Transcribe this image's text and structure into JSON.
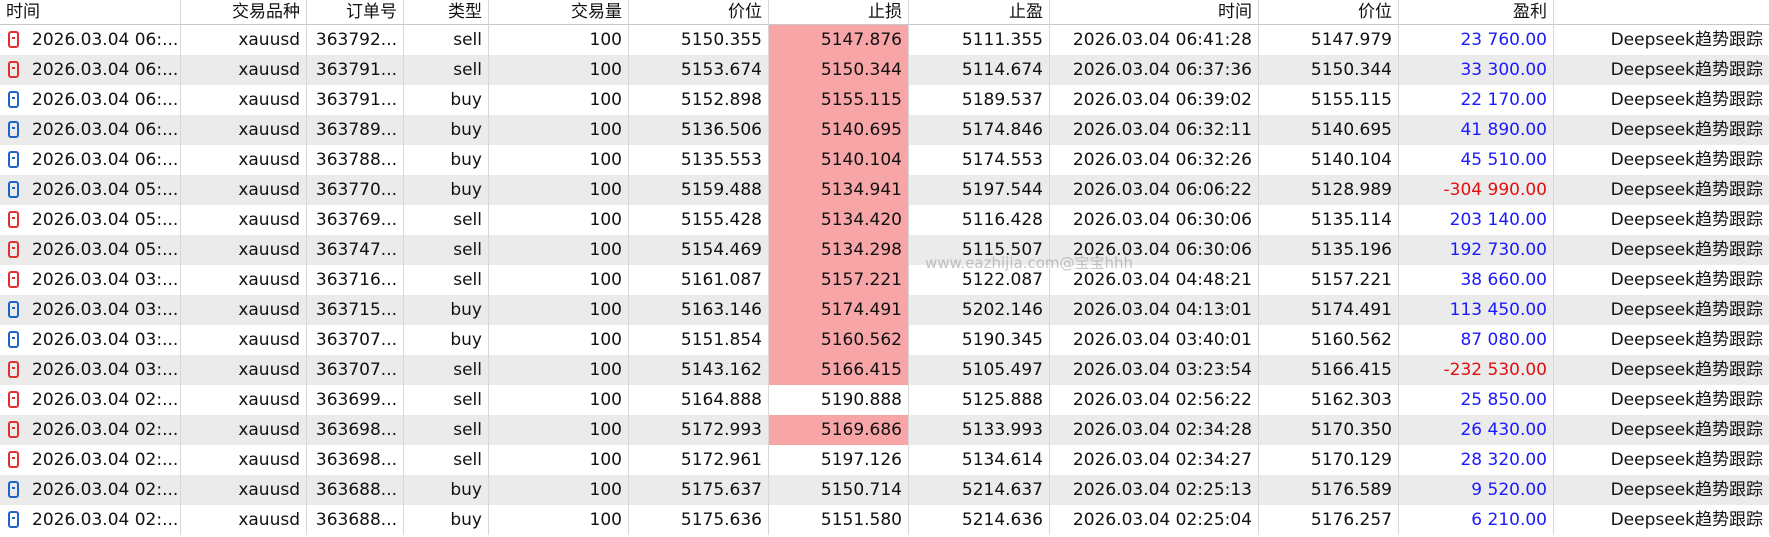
{
  "table": {
    "headers": [
      "时间",
      "交易品种",
      "订单号",
      "类型",
      "交易量",
      "价位",
      "止损",
      "止盈",
      "时间",
      "价位",
      "盈利",
      ""
    ],
    "rows": [
      [
        "2026.03.04 06:...",
        "xauusd",
        "363792...",
        "sell",
        "100",
        "5150.355",
        "5147.876",
        "5111.355",
        "2026.03.04 06:41:28",
        "5147.979",
        "23 760.00",
        "Deepseek趋势跟踪"
      ],
      [
        "2026.03.04 06:...",
        "xauusd",
        "363791...",
        "sell",
        "100",
        "5153.674",
        "5150.344",
        "5114.674",
        "2026.03.04 06:37:36",
        "5150.344",
        "33 300.00",
        "Deepseek趋势跟踪"
      ],
      [
        "2026.03.04 06:...",
        "xauusd",
        "363791...",
        "buy",
        "100",
        "5152.898",
        "5155.115",
        "5189.537",
        "2026.03.04 06:39:02",
        "5155.115",
        "22 170.00",
        "Deepseek趋势跟踪"
      ],
      [
        "2026.03.04 06:...",
        "xauusd",
        "363789...",
        "buy",
        "100",
        "5136.506",
        "5140.695",
        "5174.846",
        "2026.03.04 06:32:11",
        "5140.695",
        "41 890.00",
        "Deepseek趋势跟踪"
      ],
      [
        "2026.03.04 06:...",
        "xauusd",
        "363788...",
        "buy",
        "100",
        "5135.553",
        "5140.104",
        "5174.553",
        "2026.03.04 06:32:26",
        "5140.104",
        "45 510.00",
        "Deepseek趋势跟踪"
      ],
      [
        "2026.03.04 05:...",
        "xauusd",
        "363770...",
        "buy",
        "100",
        "5159.488",
        "5134.941",
        "5197.544",
        "2026.03.04 06:06:22",
        "5128.989",
        "-304 990.00",
        "Deepseek趋势跟踪"
      ],
      [
        "2026.03.04 05:...",
        "xauusd",
        "363769...",
        "sell",
        "100",
        "5155.428",
        "5134.420",
        "5116.428",
        "2026.03.04 06:30:06",
        "5135.114",
        "203 140.00",
        "Deepseek趋势跟踪"
      ],
      [
        "2026.03.04 05:...",
        "xauusd",
        "363747...",
        "sell",
        "100",
        "5154.469",
        "5134.298",
        "5115.507",
        "2026.03.04 06:30:06",
        "5135.196",
        "192 730.00",
        "Deepseek趋势跟踪"
      ],
      [
        "2026.03.04 03:...",
        "xauusd",
        "363716...",
        "sell",
        "100",
        "5161.087",
        "5157.221",
        "5122.087",
        "2026.03.04 04:48:21",
        "5157.221",
        "38 660.00",
        "Deepseek趋势跟踪"
      ],
      [
        "2026.03.04 03:...",
        "xauusd",
        "363715...",
        "buy",
        "100",
        "5163.146",
        "5174.491",
        "5202.146",
        "2026.03.04 04:13:01",
        "5174.491",
        "113 450.00",
        "Deepseek趋势跟踪"
      ],
      [
        "2026.03.04 03:...",
        "xauusd",
        "363707...",
        "buy",
        "100",
        "5151.854",
        "5160.562",
        "5190.345",
        "2026.03.04 03:40:01",
        "5160.562",
        "87 080.00",
        "Deepseek趋势跟踪"
      ],
      [
        "2026.03.04 03:...",
        "xauusd",
        "363707...",
        "sell",
        "100",
        "5143.162",
        "5166.415",
        "5105.497",
        "2026.03.04 03:23:54",
        "5166.415",
        "-232 530.00",
        "Deepseek趋势跟踪"
      ],
      [
        "2026.03.04 02:...",
        "xauusd",
        "363699...",
        "sell",
        "100",
        "5164.888",
        "5190.888",
        "5125.888",
        "2026.03.04 02:56:22",
        "5162.303",
        "25 850.00",
        "Deepseek趋势跟踪"
      ],
      [
        "2026.03.04 02:...",
        "xauusd",
        "363698...",
        "sell",
        "100",
        "5172.993",
        "5169.686",
        "5133.993",
        "2026.03.04 02:34:28",
        "5170.350",
        "26 430.00",
        "Deepseek趋势跟踪"
      ],
      [
        "2026.03.04 02:...",
        "xauusd",
        "363698...",
        "sell",
        "100",
        "5172.961",
        "5197.126",
        "5134.614",
        "2026.03.04 02:34:27",
        "5170.129",
        "28 320.00",
        "Deepseek趋势跟踪"
      ],
      [
        "2026.03.04 02:...",
        "xauusd",
        "363688...",
        "buy",
        "100",
        "5175.637",
        "5150.714",
        "5214.637",
        "2026.03.04 02:25:13",
        "5176.589",
        "9 520.00",
        "Deepseek趋势跟踪"
      ],
      [
        "2026.03.04 02:...",
        "xauusd",
        "363688...",
        "buy",
        "100",
        "5175.636",
        "5151.580",
        "5214.636",
        "2026.03.04 02:25:04",
        "5176.257",
        "6 210.00",
        "Deepseek趋势跟踪"
      ]
    ],
    "stop_loss_highlighted": [
      true,
      true,
      true,
      true,
      true,
      true,
      true,
      true,
      true,
      true,
      true,
      true,
      false,
      true,
      false,
      false,
      false
    ]
  },
  "watermark": "www.eazhijia.com@宝宝hhh"
}
